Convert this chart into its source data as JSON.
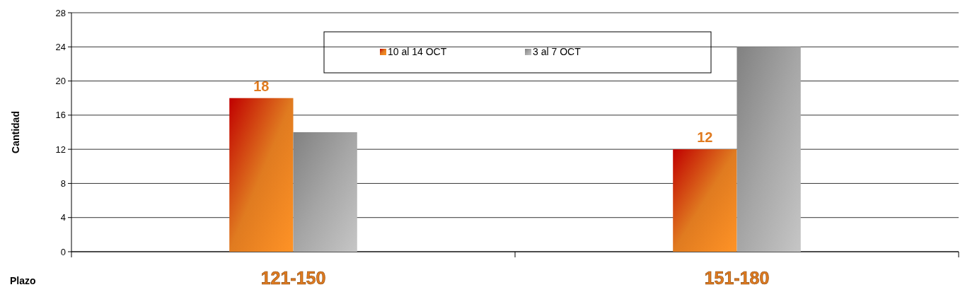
{
  "chart_data": {
    "type": "bar",
    "xlabel": "Plazo",
    "ylabel": "Cantidad",
    "categories": [
      "121-150",
      "151-180"
    ],
    "series": [
      {
        "name": "10 al 14 OCT",
        "color": "#e07b20",
        "values": [
          18,
          12
        ],
        "value_labels": [
          "18",
          "12"
        ]
      },
      {
        "name": "3 al 7 OCT",
        "color": "#a6a6a6",
        "values": [
          14,
          24
        ]
      }
    ],
    "ylim": [
      0,
      28
    ],
    "yticks": [
      0,
      4,
      8,
      12,
      16,
      20,
      24,
      28
    ],
    "grid": "y",
    "legend": "top"
  }
}
